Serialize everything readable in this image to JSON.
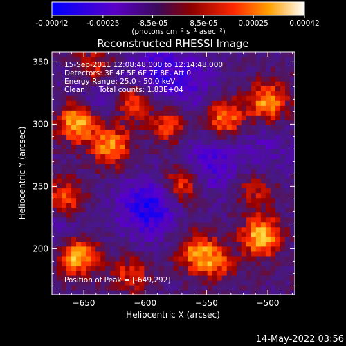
{
  "colorbar": {
    "tick_labels": [
      "-0.00042",
      "-0.00025",
      "-8.5e-05",
      "8.5e-05",
      "0.00025",
      "0.00042"
    ],
    "tick_values": [
      -0.00042,
      -0.00025,
      -8.5e-05,
      8.5e-05,
      0.00025,
      0.00042
    ],
    "range": [
      -0.00042,
      0.00042
    ],
    "unit_label": "(photons cm⁻² s⁻¹ asec⁻²)"
  },
  "chart_data": {
    "type": "heatmap",
    "title": "Reconstructed RHESSI Image",
    "xlabel": "Heliocentric X (arcsec)",
    "ylabel": "Heliocentric Y (arcsec)",
    "xlim": [
      -676,
      -478
    ],
    "ylim": [
      163,
      358
    ],
    "x_ticks": [
      -650,
      -600,
      -550,
      -500
    ],
    "x_tick_labels": [
      "−650",
      "−600",
      "−550",
      "−500"
    ],
    "y_ticks": [
      200,
      250,
      300,
      350
    ],
    "y_tick_labels": [
      "200",
      "250",
      "300",
      "350"
    ],
    "colormap": "blue-purple-red-orange-yellow-white",
    "annotations": [
      "15-Sep-2011 12:08:48.000 to 12:14:48.000",
      "Detectors: 3F 4F 5F 6F 7F 8F, Att 0",
      "Energy Range: 25.0 - 50.0 keV",
      "Clean      Total counts: 1.83E+04"
    ],
    "peak_label": "Position of Peak = [-649,292]",
    "peak_position": [
      -649,
      292
    ],
    "bright_sources": [
      {
        "x": -655,
        "y": 302,
        "intensity": 0.0004
      },
      {
        "x": -655,
        "y": 195,
        "intensity": 0.00042
      },
      {
        "x": -665,
        "y": 240,
        "intensity": 0.00028
      },
      {
        "x": -628,
        "y": 283,
        "intensity": 0.00036
      },
      {
        "x": -610,
        "y": 318,
        "intensity": 0.0003
      },
      {
        "x": -580,
        "y": 300,
        "intensity": 0.00026
      },
      {
        "x": -570,
        "y": 252,
        "intensity": 0.0003
      },
      {
        "x": -560,
        "y": 198,
        "intensity": 0.00026
      },
      {
        "x": -535,
        "y": 305,
        "intensity": 0.00034
      },
      {
        "x": -500,
        "y": 318,
        "intensity": 0.00034
      },
      {
        "x": -505,
        "y": 210,
        "intensity": 0.00042
      },
      {
        "x": -510,
        "y": 250,
        "intensity": 0.00022
      },
      {
        "x": -640,
        "y": 345,
        "intensity": 0.00024
      },
      {
        "x": -543,
        "y": 190,
        "intensity": 0.00026
      },
      {
        "x": -612,
        "y": 180,
        "intensity": 0.0002
      }
    ],
    "dark_regions": [
      {
        "x": -598,
        "y": 233,
        "intensity": -0.0003
      },
      {
        "x": -590,
        "y": 345,
        "intensity": -0.00018
      },
      {
        "x": -548,
        "y": 268,
        "intensity": -0.0002
      },
      {
        "x": -565,
        "y": 330,
        "intensity": -0.00015
      },
      {
        "x": -635,
        "y": 325,
        "intensity": -0.00015
      },
      {
        "x": -670,
        "y": 215,
        "intensity": -0.00012
      },
      {
        "x": -505,
        "y": 275,
        "intensity": -0.00012
      }
    ]
  },
  "timestamp": "14-May-2022 03:56"
}
